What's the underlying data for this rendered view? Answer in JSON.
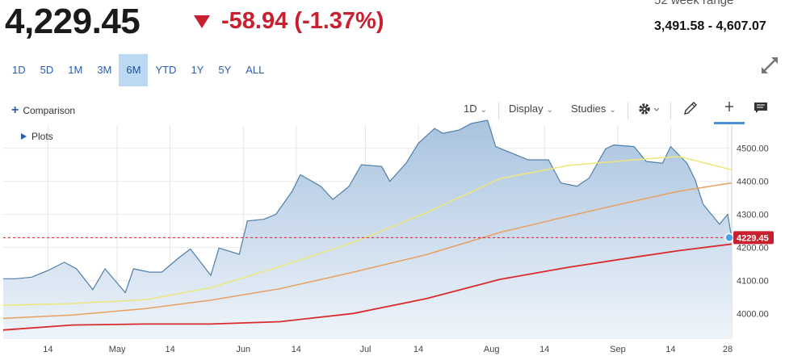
{
  "header": {
    "price": "4,229.45",
    "change": "-58.94 (-1.37%)",
    "week52_label": "52 week range",
    "week52_range": "3,491.58 - 4,607.07"
  },
  "ranges": [
    {
      "label": "1D",
      "active": false
    },
    {
      "label": "5D",
      "active": false
    },
    {
      "label": "1M",
      "active": false
    },
    {
      "label": "3M",
      "active": false
    },
    {
      "label": "6M",
      "active": true
    },
    {
      "label": "YTD",
      "active": false
    },
    {
      "label": "1Y",
      "active": false
    },
    {
      "label": "5Y",
      "active": false
    },
    {
      "label": "ALL",
      "active": false
    }
  ],
  "toolbar": {
    "comparison": "Comparison",
    "interval": "1D",
    "display": "Display",
    "studies": "Studies",
    "plots": "Plots",
    "icons": [
      "gear-icon",
      "pencil-icon",
      "crosshair-icon",
      "comment-icon"
    ]
  },
  "colors": {
    "price_line": "#4f7fa8",
    "area_top": "#a9c3df",
    "area_bottom": "#eef4fa",
    "ma_yellow": "#ece77a",
    "ma_orange": "#e8a060",
    "ma_red": "#d92b2b",
    "last_price_tag": "#c8202f"
  },
  "chart_data": {
    "type": "area",
    "ylim": [
      3925,
      4570
    ],
    "yticks": [
      4000,
      4100,
      4200,
      4300,
      4400,
      4500
    ],
    "ytick_labels": [
      "4000.00",
      "4100.00",
      "4200.00",
      "4300.00",
      "4400.00",
      "4500.00"
    ],
    "xticks": [
      {
        "label": "14",
        "date": "2023-04-14"
      },
      {
        "label": "May",
        "date": "2023-05-01"
      },
      {
        "label": "14",
        "date": "2023-05-14"
      },
      {
        "label": "Jun",
        "date": "2023-06-01"
      },
      {
        "label": "14",
        "date": "2023-06-14"
      },
      {
        "label": "Jul",
        "date": "2023-07-01"
      },
      {
        "label": "14",
        "date": "2023-07-14"
      },
      {
        "label": "Aug",
        "date": "2023-08-01"
      },
      {
        "label": "14",
        "date": "2023-08-14"
      },
      {
        "label": "Sep",
        "date": "2023-09-01"
      },
      {
        "label": "14",
        "date": "2023-09-14"
      },
      {
        "label": "28",
        "date": "2023-09-28"
      }
    ],
    "last_price": 4229.45,
    "last_price_label": "4229.45",
    "series": [
      {
        "key": "price",
        "x": [
          "2023-04-03",
          "2023-04-06",
          "2023-04-10",
          "2023-04-14",
          "2023-04-18",
          "2023-04-21",
          "2023-04-25",
          "2023-04-28",
          "2023-05-03",
          "2023-05-05",
          "2023-05-09",
          "2023-05-12",
          "2023-05-16",
          "2023-05-19",
          "2023-05-24",
          "2023-05-26",
          "2023-05-31",
          "2023-06-02",
          "2023-06-06",
          "2023-06-09",
          "2023-06-13",
          "2023-06-15",
          "2023-06-20",
          "2023-06-23",
          "2023-06-27",
          "2023-06-30",
          "2023-07-05",
          "2023-07-07",
          "2023-07-11",
          "2023-07-14",
          "2023-07-18",
          "2023-07-20",
          "2023-07-24",
          "2023-07-27",
          "2023-07-31",
          "2023-08-02",
          "2023-08-07",
          "2023-08-10",
          "2023-08-15",
          "2023-08-18",
          "2023-08-22",
          "2023-08-25",
          "2023-08-29",
          "2023-08-31",
          "2023-09-05",
          "2023-09-08",
          "2023-09-12",
          "2023-09-14",
          "2023-09-18",
          "2023-09-20",
          "2023-09-22",
          "2023-09-26",
          "2023-09-28",
          "2023-09-29"
        ],
        "values": [
          4105,
          4105,
          4110,
          4130,
          4155,
          4135,
          4072,
          4135,
          4063,
          4135,
          4125,
          4125,
          4167,
          4195,
          4115,
          4198,
          4179,
          4280,
          4285,
          4300,
          4370,
          4420,
          4385,
          4345,
          4385,
          4450,
          4445,
          4400,
          4455,
          4515,
          4560,
          4545,
          4555,
          4575,
          4585,
          4505,
          4480,
          4465,
          4465,
          4395,
          4385,
          4410,
          4498,
          4510,
          4505,
          4460,
          4455,
          4505,
          4455,
          4405,
          4330,
          4270,
          4300,
          4229.45
        ]
      },
      {
        "key": "ma_yellow",
        "x": [
          "2023-04-03",
          "2023-04-20",
          "2023-05-08",
          "2023-05-24",
          "2023-06-10",
          "2023-06-28",
          "2023-07-16",
          "2023-08-03",
          "2023-08-20",
          "2023-09-05",
          "2023-09-16",
          "2023-09-29"
        ],
        "values": [
          4025,
          4030,
          4042,
          4078,
          4142,
          4215,
          4305,
          4408,
          4448,
          4465,
          4475,
          4435
        ]
      },
      {
        "key": "ma_orange",
        "x": [
          "2023-04-03",
          "2023-04-20",
          "2023-05-08",
          "2023-05-24",
          "2023-06-10",
          "2023-06-28",
          "2023-07-16",
          "2023-08-03",
          "2023-08-20",
          "2023-09-05",
          "2023-09-16",
          "2023-09-29"
        ],
        "values": [
          3985,
          3995,
          4015,
          4040,
          4075,
          4125,
          4178,
          4245,
          4295,
          4340,
          4370,
          4395
        ]
      },
      {
        "key": "ma_red",
        "x": [
          "2023-04-03",
          "2023-04-20",
          "2023-05-08",
          "2023-05-24",
          "2023-06-10",
          "2023-06-28",
          "2023-07-16",
          "2023-08-03",
          "2023-08-20",
          "2023-09-05",
          "2023-09-16",
          "2023-09-29"
        ],
        "values": [
          3950,
          3965,
          3968,
          3968,
          3975,
          4000,
          4045,
          4103,
          4140,
          4170,
          4190,
          4210
        ]
      }
    ]
  }
}
